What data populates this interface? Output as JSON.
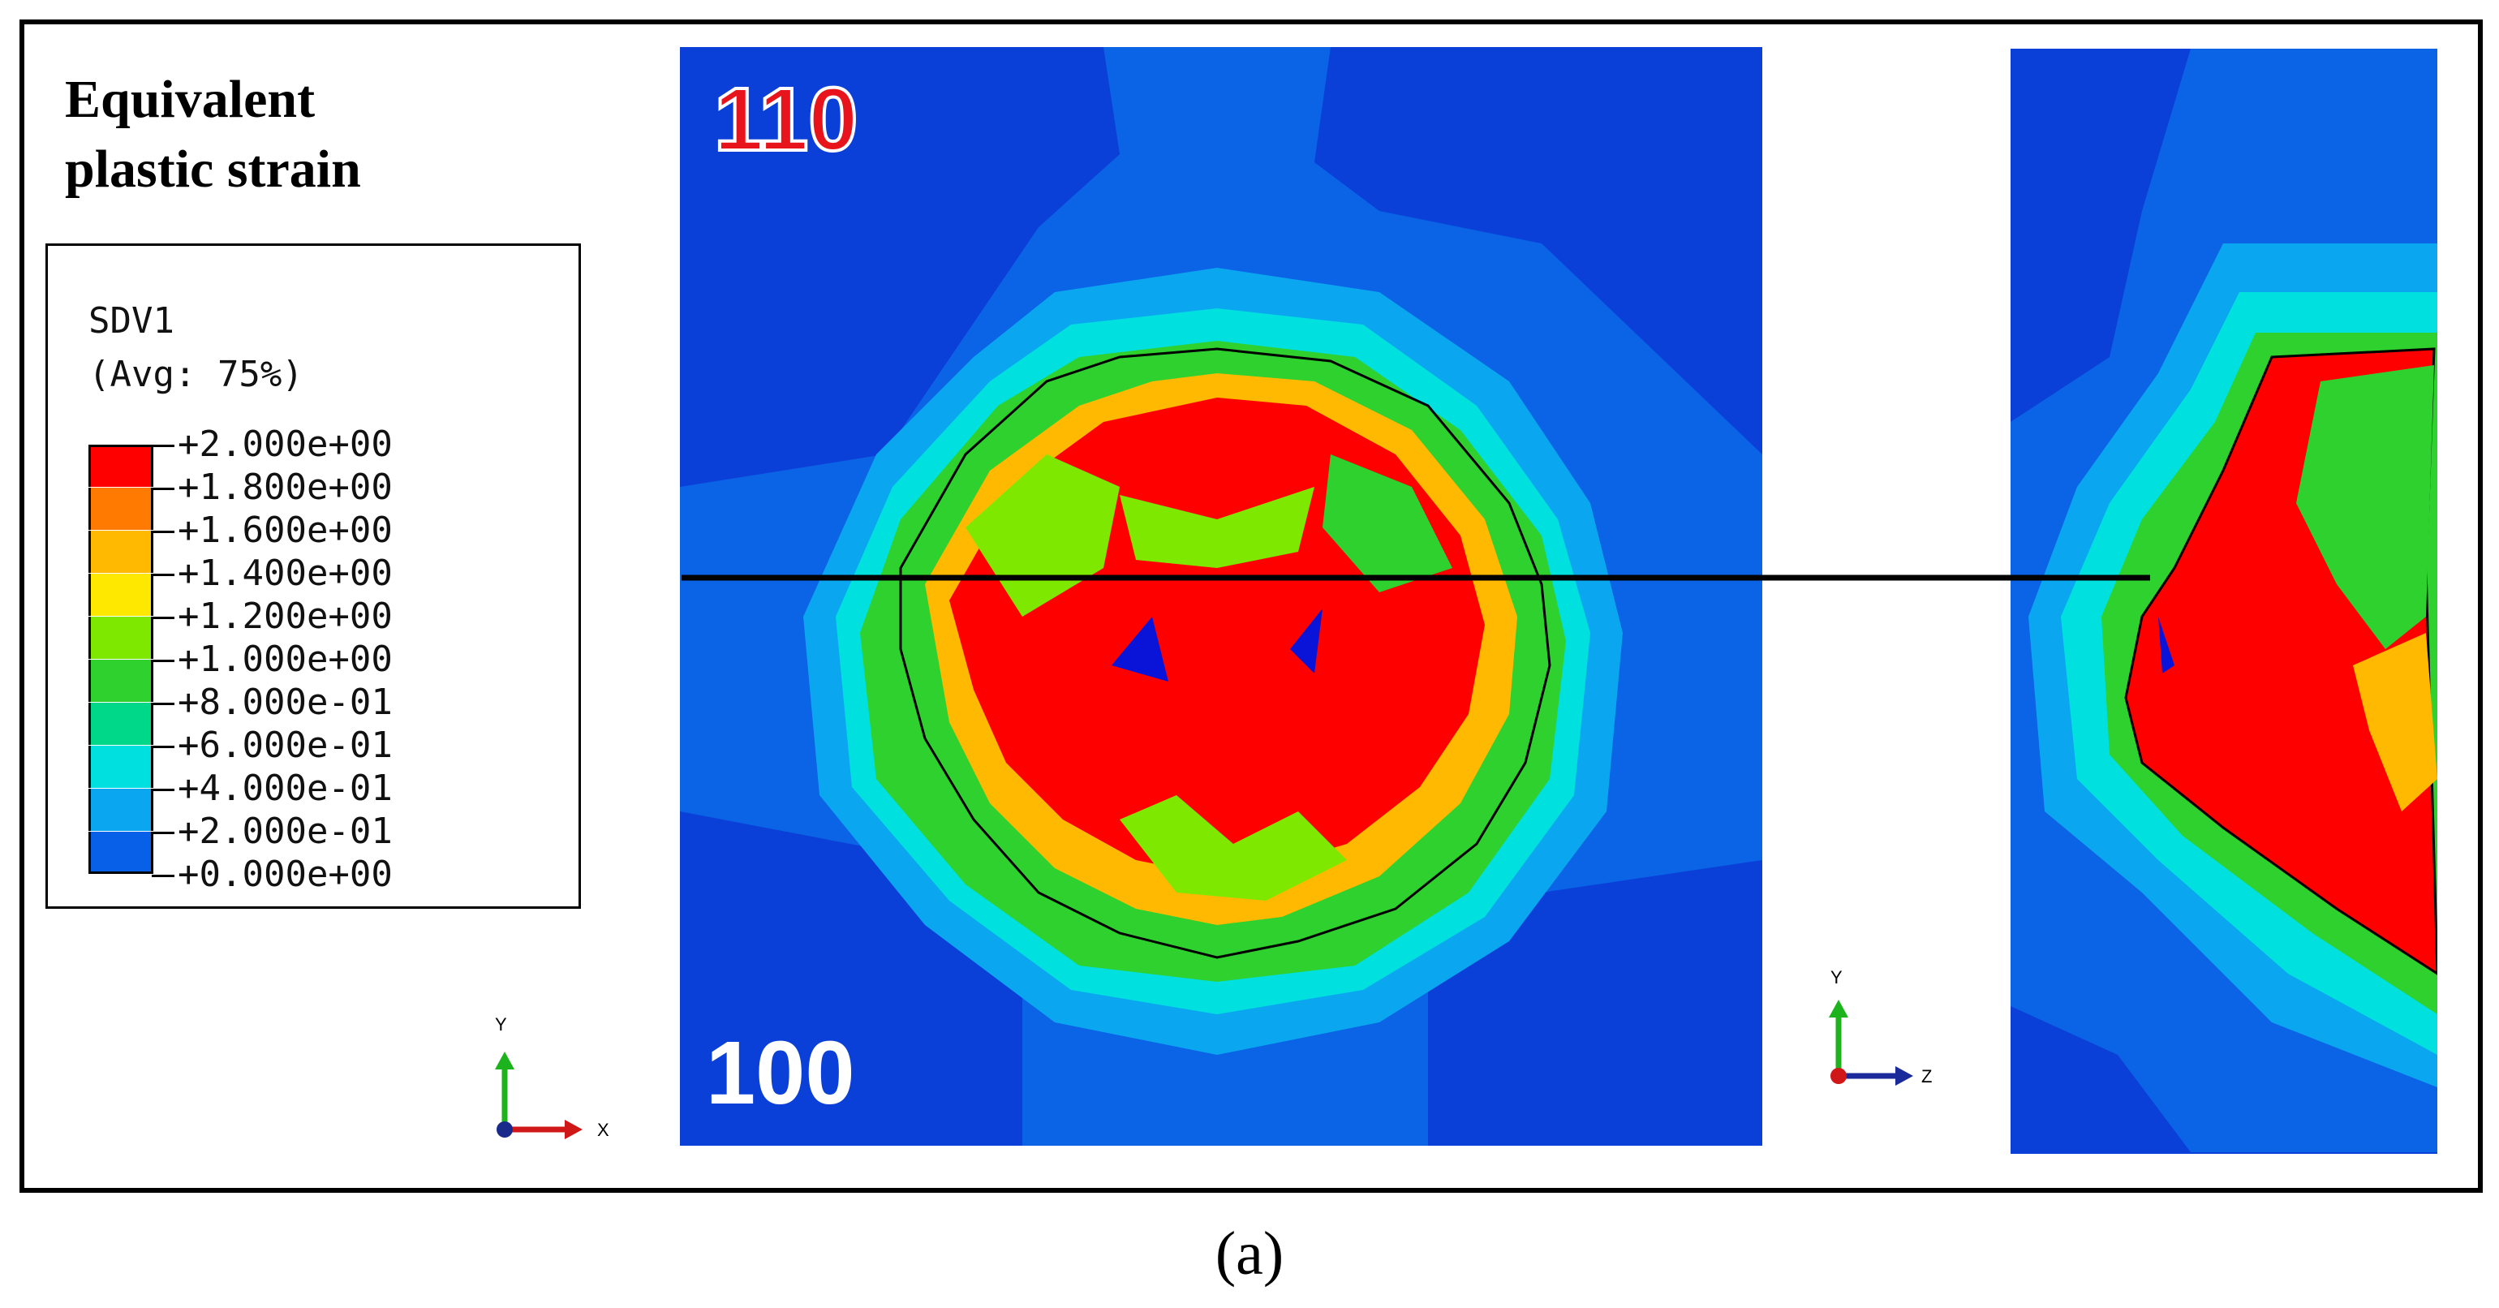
{
  "title_lines": [
    "Equivalent",
    "plastic strain"
  ],
  "legend": {
    "variable": "SDV1",
    "averaging": "(Avg: 75%)",
    "levels": [
      {
        "label": "+2.000e+00",
        "color": "#ff0000"
      },
      {
        "label": "+1.800e+00",
        "color": "#ff7a00"
      },
      {
        "label": "+1.600e+00",
        "color": "#ffb900"
      },
      {
        "label": "+1.400e+00",
        "color": "#ffe800"
      },
      {
        "label": "+1.200e+00",
        "color": "#7fe800"
      },
      {
        "label": "+1.000e+00",
        "color": "#2ed12e"
      },
      {
        "label": "+8.000e-01",
        "color": "#00d889"
      },
      {
        "label": "+6.000e-01",
        "color": "#00e1df"
      },
      {
        "label": "+4.000e-01",
        "color": "#0aa6f0"
      },
      {
        "label": "+2.000e-01",
        "color": "#0860e8"
      },
      {
        "label": "+0.000e+00",
        "color": "#0a14d8"
      }
    ],
    "bottom_label": ""
  },
  "left_view": {
    "top_label": "110",
    "bottom_label": "100",
    "triad": {
      "up": "Y",
      "right": "X"
    }
  },
  "right_view": {
    "triad": {
      "up": "Y",
      "right": "Z"
    }
  },
  "caption": "(a)",
  "colors": {
    "background_blue": "#0a3fd8",
    "mid_blue": "#0b63e6",
    "label_red": "#e8141c",
    "label_white": "#ffffff"
  }
}
